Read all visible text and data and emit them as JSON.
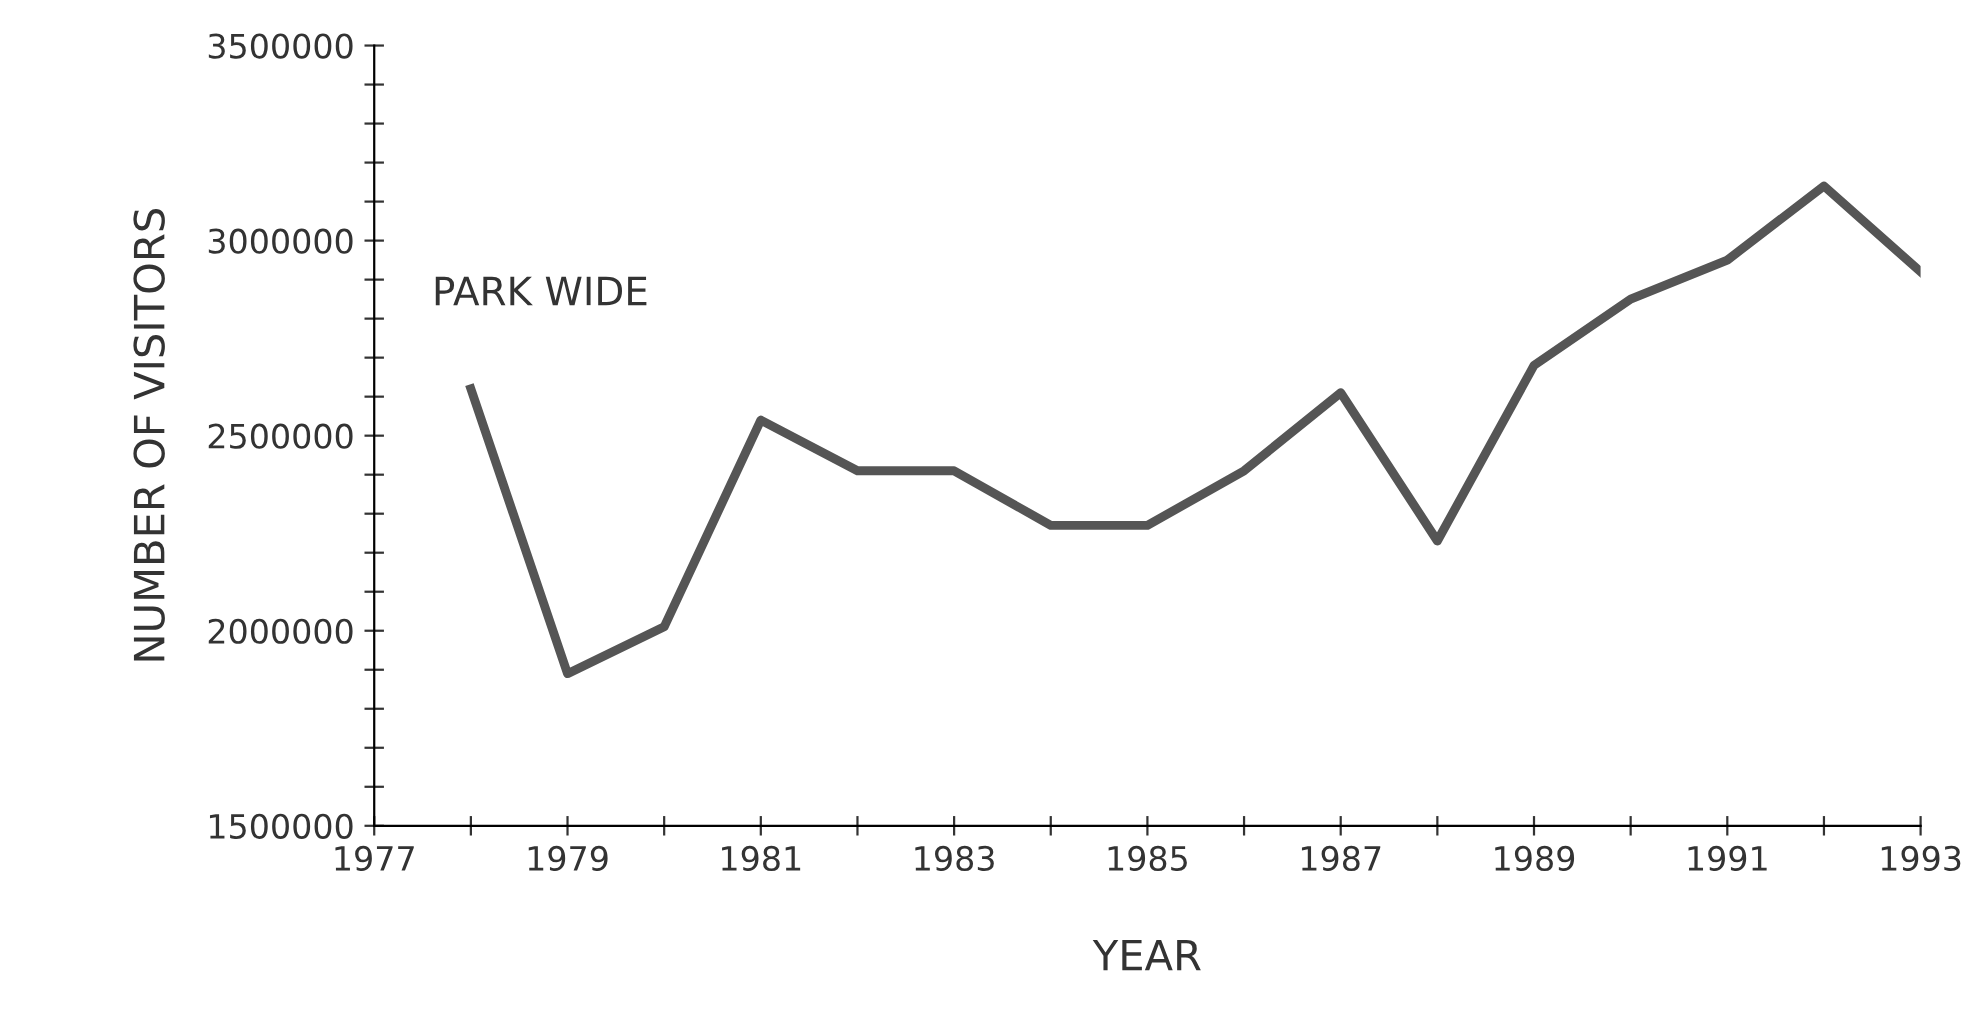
{
  "chart_data": {
    "type": "line",
    "xlabel": "YEAR",
    "ylabel": "NUMBER OF VISITORS",
    "x": [
      1978,
      1979,
      1980,
      1981,
      1982,
      1983,
      1984,
      1985,
      1986,
      1987,
      1988,
      1989,
      1990,
      1991,
      1992,
      1993
    ],
    "series": [
      {
        "name": "PARK WIDE",
        "color": "#555555",
        "values": [
          2620000,
          1890000,
          2010000,
          2540000,
          2410000,
          2410000,
          2270000,
          2270000,
          2410000,
          2610000,
          2230000,
          2680000,
          2850000,
          2950000,
          3140000,
          2920000
        ]
      }
    ],
    "xlim": [
      1977,
      1993
    ],
    "xticks": [
      1977,
      {
        "value": 1978,
        "label": null
      },
      1979,
      {
        "value": 1980,
        "label": null
      },
      1981,
      {
        "value": 1982,
        "label": null
      },
      1983,
      {
        "value": 1984,
        "label": null
      },
      1985,
      {
        "value": 1986,
        "label": null
      },
      1987,
      {
        "value": 1988,
        "label": null
      },
      1989,
      {
        "value": 1990,
        "label": null
      },
      1991,
      {
        "value": 1992,
        "label": null
      },
      1993
    ],
    "ylim": [
      1500000,
      3500000
    ],
    "yticks": [
      1500000,
      {
        "value": 1600000,
        "label": null
      },
      {
        "value": 1700000,
        "label": null
      },
      {
        "value": 1800000,
        "label": null
      },
      {
        "value": 1900000,
        "label": null
      },
      2000000,
      {
        "value": 2100000,
        "label": null
      },
      {
        "value": 2200000,
        "label": null
      },
      {
        "value": 2300000,
        "label": null
      },
      {
        "value": 2400000,
        "label": null
      },
      2500000,
      {
        "value": 2600000,
        "label": null
      },
      {
        "value": 2700000,
        "label": null
      },
      {
        "value": 2800000,
        "label": null
      },
      {
        "value": 2900000,
        "label": null
      },
      3000000,
      {
        "value": 3100000,
        "label": null
      },
      {
        "value": 3200000,
        "label": null
      },
      {
        "value": 3300000,
        "label": null
      },
      {
        "value": 3400000,
        "label": null
      },
      3500000
    ],
    "grid": false,
    "legend": false,
    "marker": "none",
    "line_style": "solid"
  }
}
